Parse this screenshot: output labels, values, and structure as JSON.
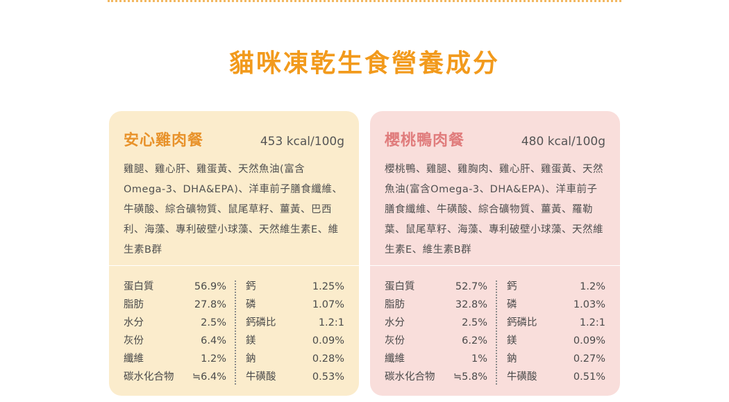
{
  "title": "貓咪凍乾生食營養成分",
  "cards": [
    {
      "name": "安心雞肉餐",
      "kcal": "453 kcal/100g",
      "ingredients": "雞腿、雞心肝、雞蛋黃、天然魚油(富含Omega-3、DHA&EPA)、洋車前子膳食纖維、牛磺酸、綜合礦物質、鼠尾草籽、薑黃、巴西利、海藻、專利破壁小球藻、天然維生素E、維生素B群",
      "nutrients_a": [
        {
          "label": "蛋白質",
          "value": "56.9%"
        },
        {
          "label": "脂肪",
          "value": "27.8%"
        },
        {
          "label": "水分",
          "value": "2.5%"
        },
        {
          "label": "灰份",
          "value": "6.4%"
        },
        {
          "label": "纖維",
          "value": "1.2%"
        },
        {
          "label": "碳水化合物",
          "value": "≒6.4%"
        }
      ],
      "nutrients_b": [
        {
          "label": "鈣",
          "value": "1.25%"
        },
        {
          "label": "磷",
          "value": "1.07%"
        },
        {
          "label": "鈣磷比",
          "value": "1.2:1"
        },
        {
          "label": "鎂",
          "value": "0.09%"
        },
        {
          "label": "鈉",
          "value": "0.28%"
        },
        {
          "label": "牛磺酸",
          "value": "0.53%"
        }
      ]
    },
    {
      "name": "櫻桃鴨肉餐",
      "kcal": "480 kcal/100g",
      "ingredients": "櫻桃鴨、雞腿、雞胸肉、雞心肝、雞蛋黃、天然魚油(富含Omega-3、DHA&EPA)、洋車前子膳食纖維、牛磺酸、綜合礦物質、薑黃、羅勒葉、鼠尾草籽、海藻、專利破壁小球藻、天然維生素E、維生素B群",
      "nutrients_a": [
        {
          "label": "蛋白質",
          "value": "52.7%"
        },
        {
          "label": "脂肪",
          "value": "32.8%"
        },
        {
          "label": "水分",
          "value": "2.5%"
        },
        {
          "label": "灰份",
          "value": "6.2%"
        },
        {
          "label": "纖維",
          "value": "1%"
        },
        {
          "label": "碳水化合物",
          "value": "≒5.8%"
        }
      ],
      "nutrients_b": [
        {
          "label": "鈣",
          "value": "1.2%"
        },
        {
          "label": "磷",
          "value": "1.03%"
        },
        {
          "label": "鈣磷比",
          "value": "1.2:1"
        },
        {
          "label": "鎂",
          "value": "0.09%"
        },
        {
          "label": "鈉",
          "value": "0.27%"
        },
        {
          "label": "牛磺酸",
          "value": "0.51%"
        }
      ]
    }
  ]
}
